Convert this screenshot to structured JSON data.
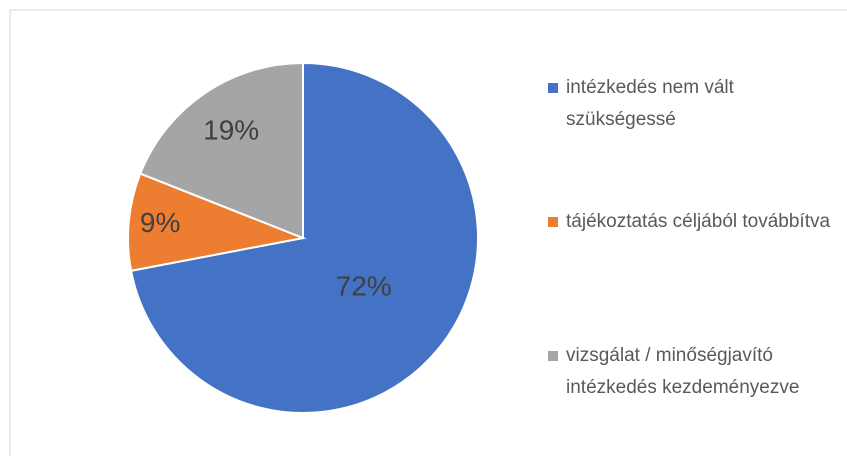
{
  "chart_data": {
    "type": "pie",
    "categories": [
      "intézkedés nem vált szükségessé",
      "tájékoztatás céljából továbbítva",
      "vizsgálat / minőségjavító intézkedés kezdeményezve"
    ],
    "values": [
      72,
      9,
      19
    ],
    "value_labels": [
      "72%",
      "9%",
      "19%"
    ],
    "colors": [
      "#4472c4",
      "#ed7d31",
      "#a5a5a5"
    ],
    "legend": "right"
  }
}
